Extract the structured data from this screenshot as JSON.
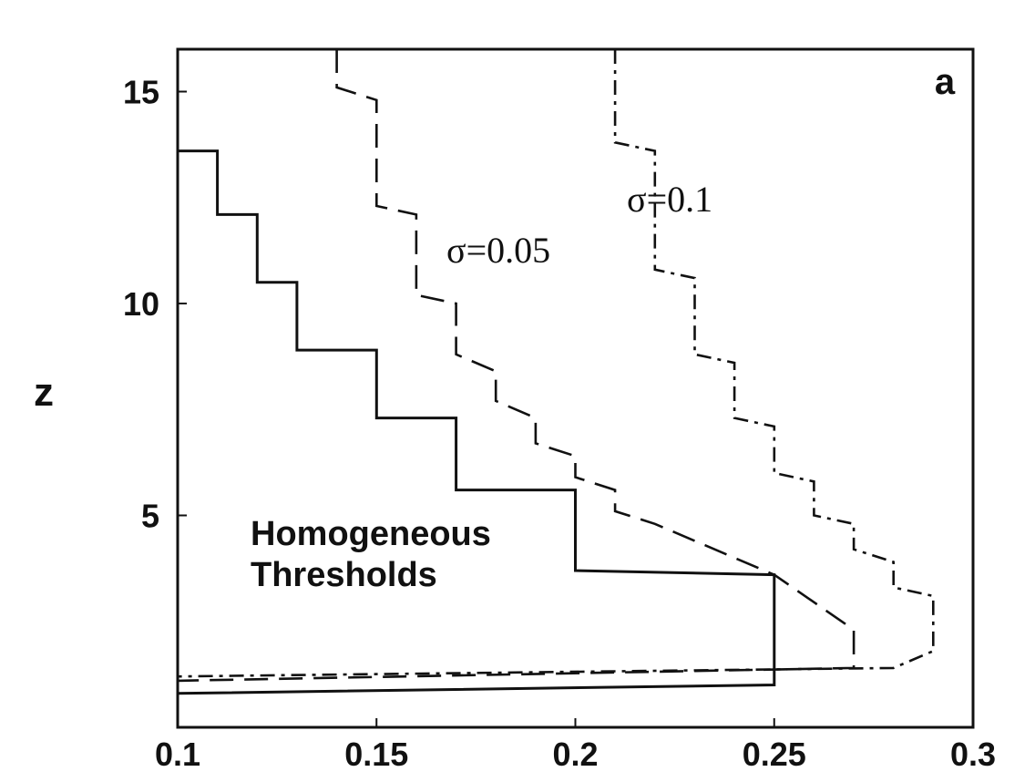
{
  "chart_data": {
    "type": "line",
    "title": "",
    "panel_label": "a",
    "xlabel": "",
    "ylabel": "z",
    "xlim": [
      0.1,
      0.3
    ],
    "ylim": [
      0,
      16
    ],
    "grid": false,
    "x_ticks": [
      0.1,
      0.15,
      0.2,
      0.25,
      0.3
    ],
    "x_tick_labels": [
      "0.1",
      "0.15",
      "0.2",
      "0.25",
      "0.3"
    ],
    "y_ticks": [
      5,
      10,
      15
    ],
    "y_tick_labels": [
      "5",
      "10",
      "15"
    ],
    "annotations": {
      "homogeneous_line1": "Homogeneous",
      "homogeneous_line2": "Thresholds",
      "sigma_005": "σ=0.05",
      "sigma_01": "σ=0.1"
    },
    "series": [
      {
        "style": "solid",
        "points": [
          [
            0.1,
            16
          ],
          [
            0.1,
            13.6
          ],
          [
            0.11,
            13.6
          ],
          [
            0.11,
            12.1
          ],
          [
            0.12,
            12.1
          ],
          [
            0.12,
            10.5
          ],
          [
            0.13,
            10.5
          ],
          [
            0.13,
            8.9
          ],
          [
            0.15,
            8.9
          ],
          [
            0.15,
            7.3
          ],
          [
            0.17,
            7.3
          ],
          [
            0.17,
            5.6
          ],
          [
            0.2,
            5.6
          ],
          [
            0.2,
            3.7
          ],
          [
            0.25,
            3.6
          ],
          [
            0.25,
            1.0
          ],
          [
            0.1,
            0.8
          ]
        ]
      },
      {
        "style": "dashed",
        "points": [
          [
            0.14,
            16
          ],
          [
            0.14,
            15.1
          ],
          [
            0.15,
            14.8
          ],
          [
            0.15,
            12.3
          ],
          [
            0.16,
            12.1
          ],
          [
            0.16,
            10.2
          ],
          [
            0.17,
            10.0
          ],
          [
            0.17,
            8.8
          ],
          [
            0.18,
            8.4
          ],
          [
            0.18,
            7.7
          ],
          [
            0.19,
            7.3
          ],
          [
            0.19,
            6.7
          ],
          [
            0.2,
            6.4
          ],
          [
            0.2,
            5.9
          ],
          [
            0.21,
            5.6
          ],
          [
            0.21,
            5.1
          ],
          [
            0.22,
            4.8
          ],
          [
            0.23,
            4.4
          ],
          [
            0.24,
            4.0
          ],
          [
            0.25,
            3.6
          ],
          [
            0.27,
            2.3
          ],
          [
            0.27,
            1.4
          ],
          [
            0.1,
            1.1
          ]
        ]
      },
      {
        "style": "dashdot",
        "points": [
          [
            0.21,
            16
          ],
          [
            0.21,
            13.8
          ],
          [
            0.22,
            13.6
          ],
          [
            0.22,
            10.8
          ],
          [
            0.23,
            10.6
          ],
          [
            0.23,
            8.8
          ],
          [
            0.24,
            8.6
          ],
          [
            0.24,
            7.3
          ],
          [
            0.25,
            7.1
          ],
          [
            0.25,
            6.0
          ],
          [
            0.26,
            5.8
          ],
          [
            0.26,
            5.0
          ],
          [
            0.27,
            4.8
          ],
          [
            0.27,
            4.2
          ],
          [
            0.28,
            3.9
          ],
          [
            0.28,
            3.3
          ],
          [
            0.29,
            3.1
          ],
          [
            0.29,
            1.8
          ],
          [
            0.28,
            1.4
          ],
          [
            0.1,
            1.2
          ]
        ]
      }
    ]
  }
}
